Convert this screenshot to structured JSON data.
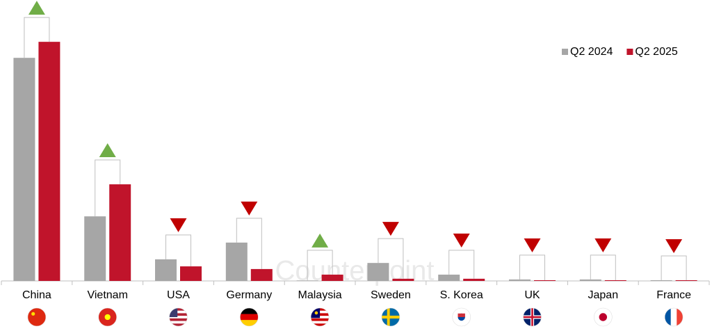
{
  "chart_data": {
    "type": "bar",
    "categories": [
      "China",
      "Vietnam",
      "USA",
      "Germany",
      "Malaysia",
      "Sweden",
      "S. Korea",
      "UK",
      "Japan",
      "France"
    ],
    "series": [
      {
        "name": "Q2 2024",
        "color": "#a6a6a6",
        "values": [
          91.9,
          26.6,
          8.9,
          15.8,
          0.2,
          7.4,
          2.6,
          0.6,
          0.6,
          0.3
        ]
      },
      {
        "name": "Q2 2025",
        "color": "#c0142b",
        "values": [
          98.5,
          39.8,
          6.0,
          4.9,
          2.6,
          0.9,
          0.9,
          0.3,
          0.3,
          0.3
        ]
      }
    ],
    "trends": [
      "up",
      "up",
      "down",
      "down",
      "up",
      "down",
      "down",
      "down",
      "down",
      "down"
    ],
    "trend_colors": {
      "up": "#70ad47",
      "down": "#c00000"
    },
    "ylim": [
      0,
      110
    ],
    "legend": "top-right",
    "watermark": "Counterpoint"
  }
}
